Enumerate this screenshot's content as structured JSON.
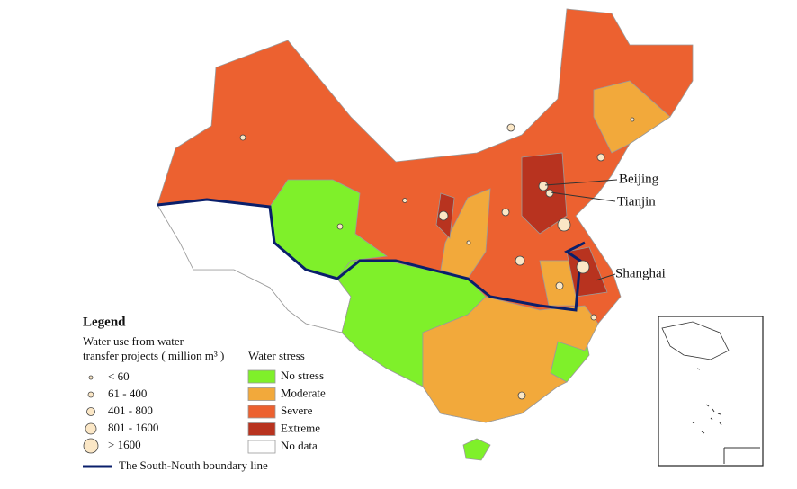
{
  "legend": {
    "title": "Legend",
    "size_title": [
      "Water use from water",
      "transfer projects ( million m³ )"
    ],
    "size_classes": [
      "< 60",
      "61 - 400",
      "401 - 800",
      "801 - 1600",
      "> 1600"
    ],
    "stress_title": "Water stress",
    "stress_classes": [
      {
        "label": "No stress",
        "color": "#7ff02a"
      },
      {
        "label": "Moderate",
        "color": "#f2a93b"
      },
      {
        "label": "Severe",
        "color": "#ec6130"
      },
      {
        "label": "Extreme",
        "color": "#b8331f"
      },
      {
        "label": "No data",
        "color": "#ffffff"
      }
    ],
    "boundary": "The South-Nouth boundary line"
  },
  "cities": [
    {
      "label": "Beijing"
    },
    {
      "label": "Tianjin"
    },
    {
      "label": "Shanghai"
    }
  ]
}
